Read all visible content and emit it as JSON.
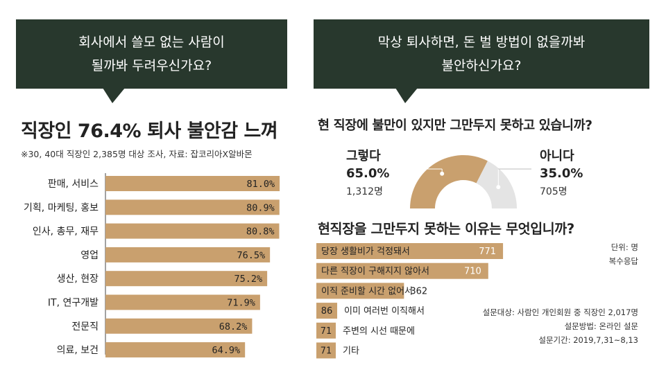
{
  "colors": {
    "bubble": "#28382d",
    "bar": "#c9a06e",
    "bar_secondary": "#e4e4e4",
    "text": "#222222"
  },
  "left": {
    "bubble_text": "회사에서 쓸모 없는 사람이\n될까봐 두려우신가요?",
    "title": "직장인 76.4% 퇴사 불안감 느껴",
    "subtitle": "※30, 40대 직장인 2,385명 대상 조사, 자료: 잡코리아X알바몬"
  },
  "right": {
    "bubble_text": "막상 퇴사하면, 돈 벌 방법이 없을까봐\n불안하신가요?",
    "question1": "현 직장에 불만이 있지만 그만두지 못하고 있습니까?",
    "question2": "현직장을 그만두지 못하는 이유는 무엇입니까?",
    "unit_note": "단위: 명",
    "multi_note": "복수응답",
    "survey_target": "설문대상: 사람인 개인회원 중 직장인 2,017명",
    "survey_method": "설문방법: 온라인 설문",
    "survey_period": "설문기간: 2019,7,31~8,13"
  },
  "chart_data": [
    {
      "type": "bar",
      "orientation": "horizontal",
      "title": "직장인 76.4% 퇴사 불안감 느껴",
      "categories": [
        "판매, 서비스",
        "기획, 마케팅, 홍보",
        "인사, 총무, 재무",
        "영업",
        "생산, 현장",
        "IT, 연구개발",
        "전문직",
        "의료, 보건"
      ],
      "values": [
        81.0,
        80.9,
        80.8,
        76.5,
        75.2,
        71.9,
        68.2,
        64.9
      ],
      "value_labels": [
        "81.0%",
        "80.9%",
        "80.8%",
        "76.5%",
        "75.2%",
        "71.9%",
        "68.2%",
        "64.9%"
      ],
      "unit": "%"
    },
    {
      "type": "pie",
      "style": "half-donut",
      "title": "현 직장에 불만이 있지만 그만두지 못하고 있습니까?",
      "slices": [
        {
          "label": "그렇다",
          "percent": 65.0,
          "percent_label": "65.0%",
          "count_label": "1,312명",
          "color": "#c9a06e"
        },
        {
          "label": "아니다",
          "percent": 35.0,
          "percent_label": "35.0%",
          "count_label": "705명",
          "color": "#e4e4e4"
        }
      ]
    },
    {
      "type": "bar",
      "orientation": "horizontal",
      "title": "현직장을 그만두지 못하는 이유는 무엇입니까?",
      "categories": [
        "당장 생활비가 걱정돼서",
        "다른 직장이 구해지지 않아서",
        "이직 준비할 시간 없어서",
        "이미 여러번 이직해서",
        "주변의 시선 때문에",
        "기타"
      ],
      "values": [
        771,
        710,
        362,
        86,
        71,
        71
      ],
      "value_labels": [
        "771",
        "710",
        "362",
        "86",
        "71",
        "71"
      ],
      "unit": "명"
    }
  ]
}
